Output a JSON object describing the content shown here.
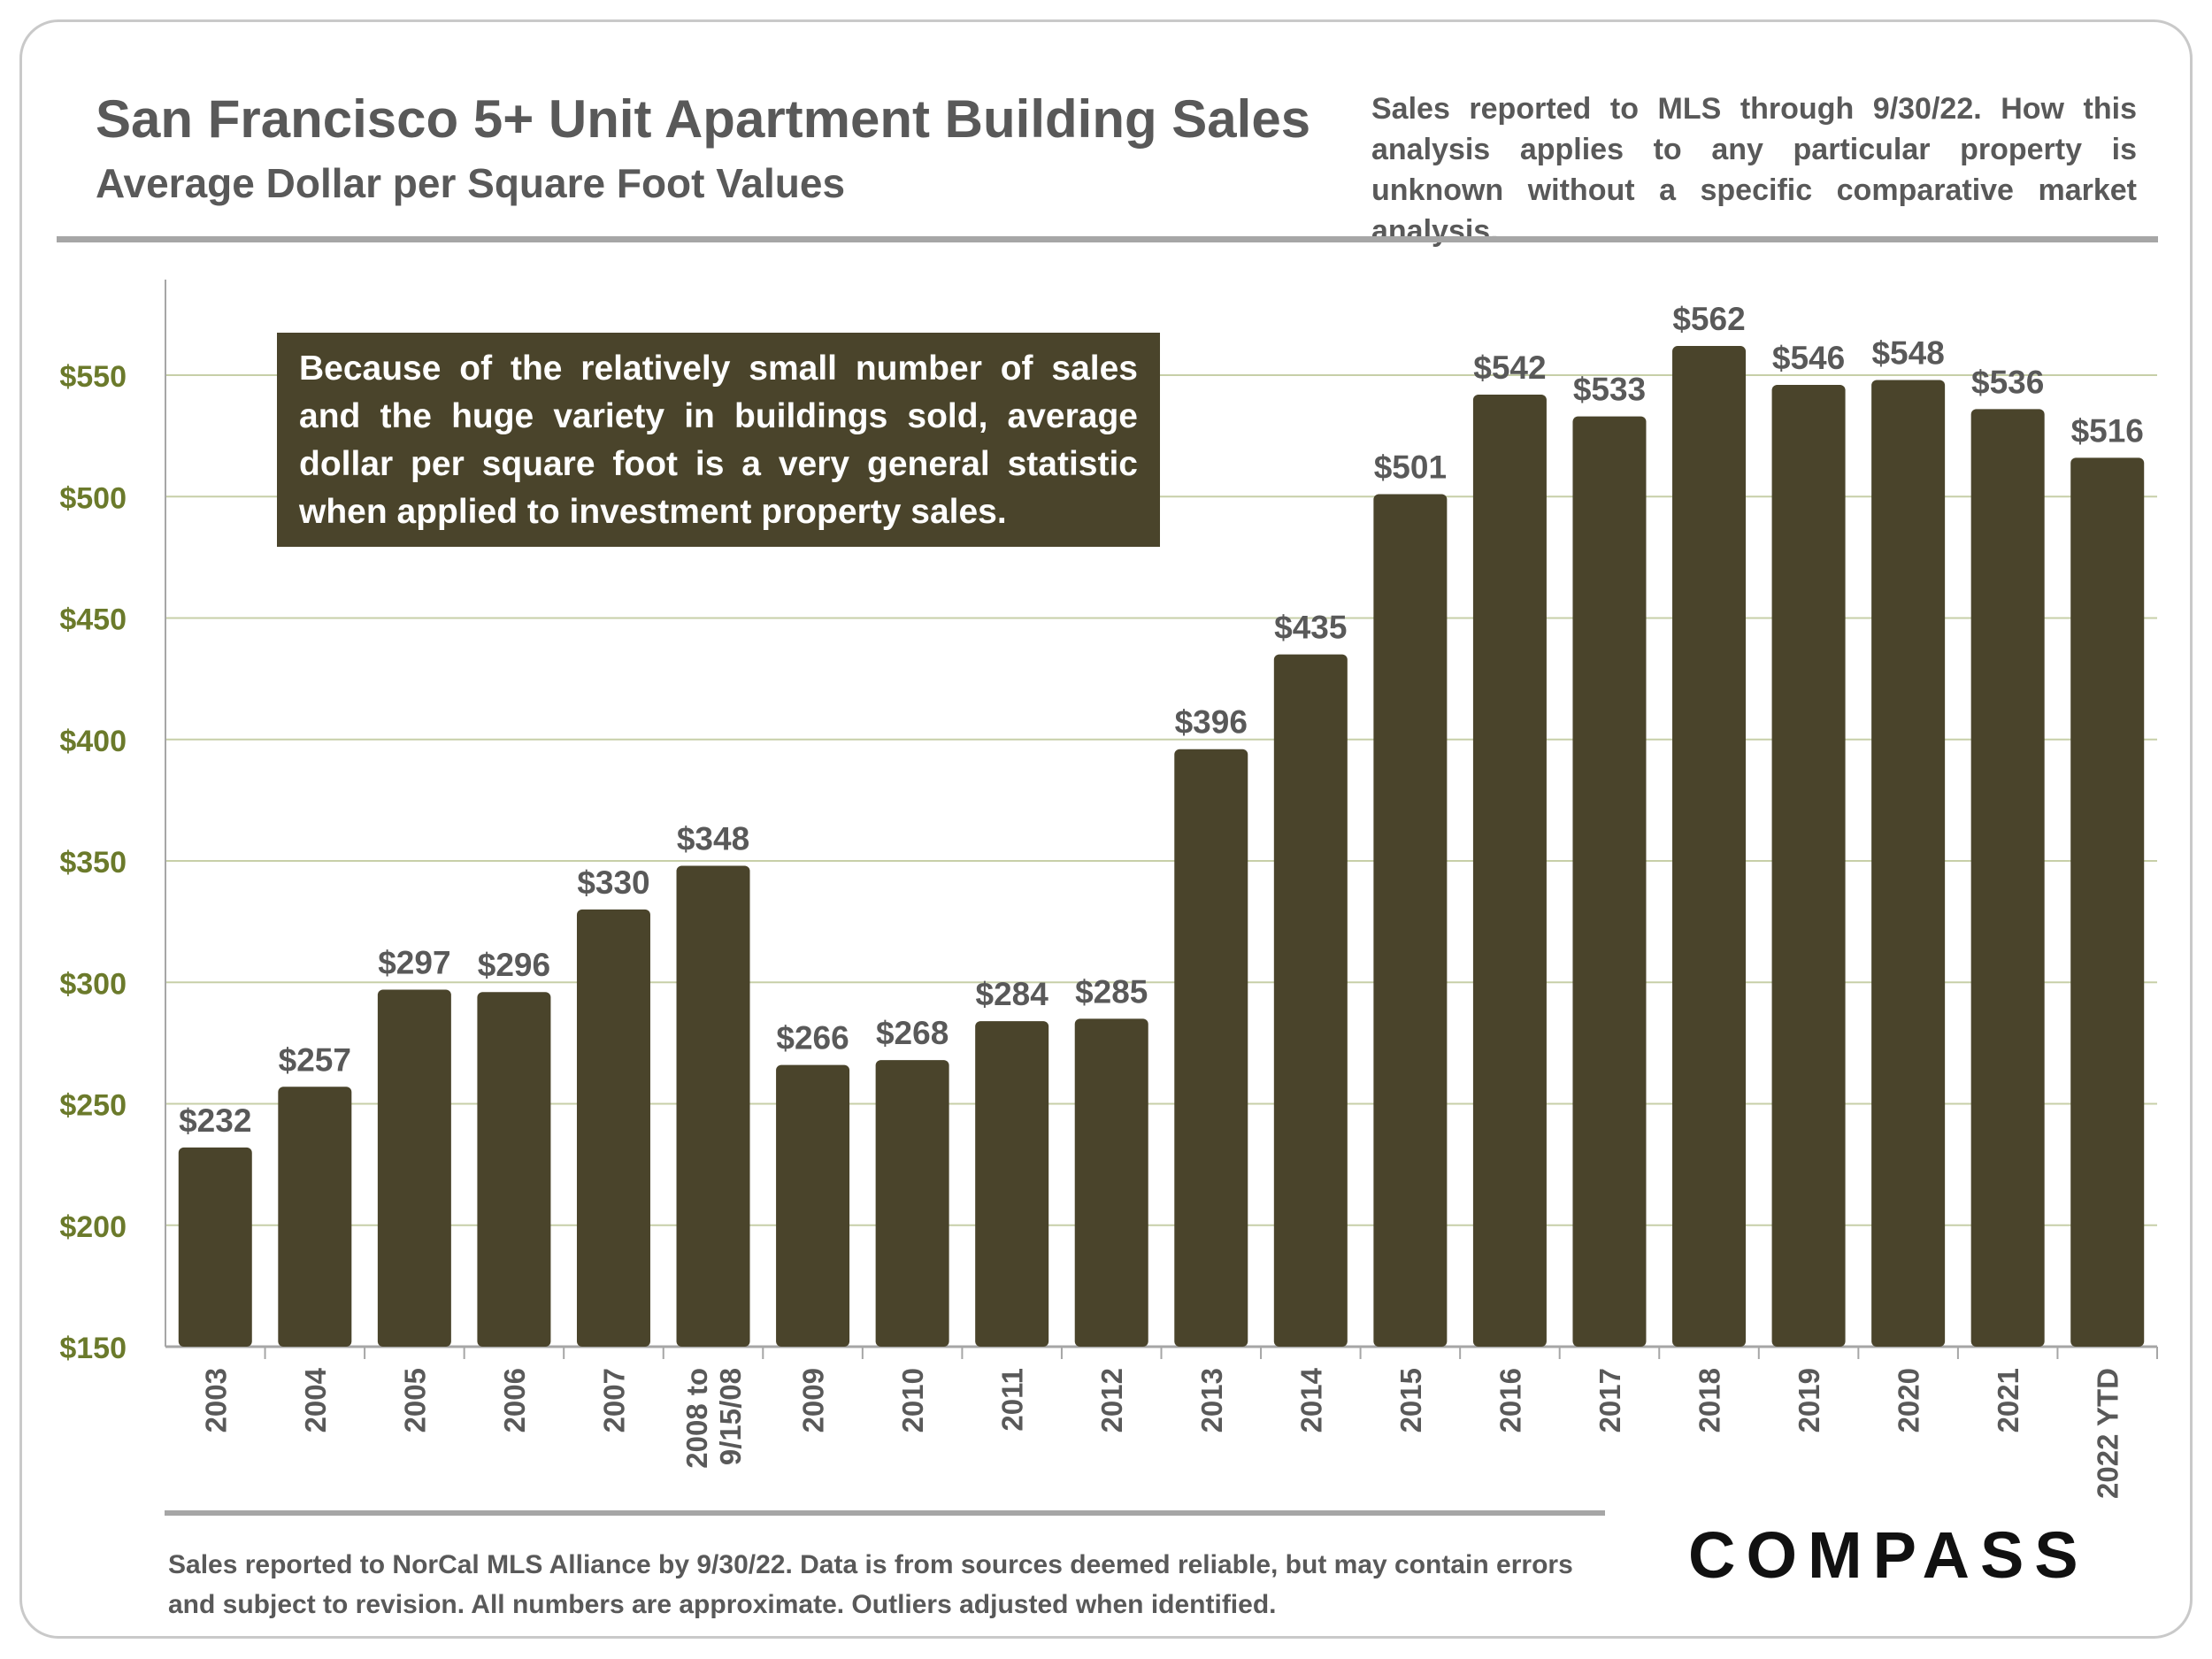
{
  "header": {
    "title": "San Francisco 5+ Unit Apartment Building Sales",
    "subtitle": "Average Dollar per Square Foot Values",
    "note": "Sales reported to MLS through 9/30/22. How this analysis applies to any particular property is unknown without a specific comparative market analysis."
  },
  "callout": "Because of the relatively small number of sales and the huge variety in buildings sold, average dollar per square foot is a very general statistic when applied to investment property sales.",
  "footer": "Sales reported to NorCal MLS Alliance by 9/30/22. Data is from sources deemed reliable, but may contain errors and subject to revision. All numbers are approximate.  Outliers adjusted when identified.",
  "logo": "COMPASS",
  "colors": {
    "bar": "#4a442b",
    "axis_label": "#6b7a2b",
    "grid": "#c7cfa8",
    "text": "#595959"
  },
  "chart_data": {
    "type": "bar",
    "categories": [
      "2003",
      "2004",
      "2005",
      "2006",
      "2007",
      "2008 to 9/15/08",
      "2009",
      "2010",
      "2011",
      "2012",
      "2013",
      "2014",
      "2015",
      "2016",
      "2017",
      "2018",
      "2019",
      "2020",
      "2021",
      "2022 YTD"
    ],
    "values": [
      232,
      257,
      297,
      296,
      330,
      348,
      266,
      268,
      284,
      285,
      396,
      435,
      501,
      542,
      533,
      562,
      546,
      548,
      536,
      516
    ],
    "value_labels": [
      "$232",
      "$257",
      "$297",
      "$296",
      "$330",
      "$348",
      "$266",
      "$268",
      "$284",
      "$285",
      "$396",
      "$435",
      "$501",
      "$542",
      "$533",
      "$562",
      "$546",
      "$548",
      "$536",
      "$516"
    ],
    "yticks": [
      150,
      200,
      250,
      300,
      350,
      400,
      450,
      500,
      550
    ],
    "ytick_labels": [
      "$150",
      "$200",
      "$250",
      "$300",
      "$350",
      "$400",
      "$450",
      "$500",
      "$550"
    ],
    "ylim": [
      150,
      590
    ],
    "grid": true
  }
}
